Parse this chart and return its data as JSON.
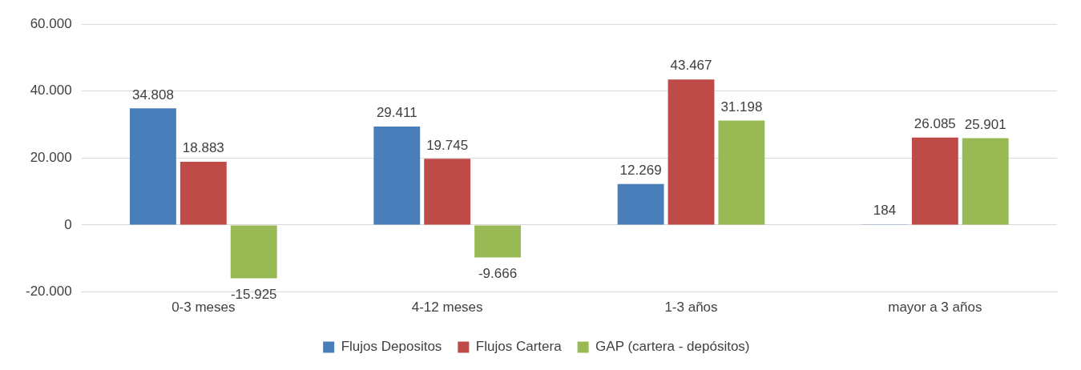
{
  "chart_data": {
    "type": "bar",
    "categories": [
      "0-3 meses",
      "4-12 meses",
      "1-3 años",
      "mayor a 3 años"
    ],
    "series": [
      {
        "name": "Flujos Depositos",
        "color": "#4a7ebb",
        "values": [
          34808,
          29411,
          12269,
          184
        ],
        "value_labels": [
          "34.808",
          "29.411",
          "12.269",
          "184"
        ]
      },
      {
        "name": "Flujos Cartera",
        "color": "#be4b48",
        "values": [
          18883,
          19745,
          43467,
          26085
        ],
        "value_labels": [
          "18.883",
          "19.745",
          "43.467",
          "26.085"
        ]
      },
      {
        "name": "GAP (cartera - depósitos)",
        "color": "#98b954",
        "values": [
          -15925,
          -9666,
          31198,
          25901
        ],
        "value_labels": [
          "-15.925",
          "-9.666",
          "31.198",
          "25.901"
        ]
      }
    ],
    "ylim": [
      -20000,
      60000
    ],
    "yticks": [
      {
        "value": -20000,
        "label": "-20.000"
      },
      {
        "value": 0,
        "label": "0"
      },
      {
        "value": 20000,
        "label": "20.000"
      },
      {
        "value": 40000,
        "label": "40.000"
      },
      {
        "value": 60000,
        "label": "60.000"
      }
    ],
    "grid": "y",
    "legend": "bottom"
  }
}
